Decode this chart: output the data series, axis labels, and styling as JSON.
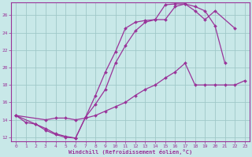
{
  "bg_color": "#c8e8e8",
  "line_color": "#993399",
  "grid_color": "#a0c8c8",
  "xlabel": "Windchill (Refroidissement éolien,°C)",
  "xlim": [
    -0.5,
    23.5
  ],
  "ylim": [
    11.5,
    27.5
  ],
  "yticks": [
    12,
    14,
    16,
    18,
    20,
    22,
    24,
    26
  ],
  "xticks": [
    0,
    1,
    2,
    3,
    4,
    5,
    6,
    7,
    8,
    9,
    10,
    11,
    12,
    13,
    14,
    15,
    16,
    17,
    18,
    19,
    20,
    21,
    22,
    23
  ],
  "curve_A_x": [
    0,
    1,
    2,
    3,
    4,
    5,
    6,
    7,
    8,
    9,
    10,
    11,
    12,
    13,
    14,
    15,
    16,
    17,
    18,
    19,
    20,
    21
  ],
  "curve_A_y": [
    14.5,
    13.7,
    13.5,
    13.0,
    12.4,
    12.1,
    11.9,
    14.3,
    16.8,
    19.5,
    21.8,
    24.5,
    25.2,
    25.4,
    25.5,
    27.2,
    27.3,
    27.3,
    27.0,
    26.5,
    24.8,
    20.5
  ],
  "curve_B_x": [
    0,
    3,
    4,
    5,
    6,
    7,
    8,
    9,
    10,
    11,
    12,
    13,
    14,
    15,
    16,
    17,
    18,
    19,
    20,
    21,
    22,
    23
  ],
  "curve_B_y": [
    14.5,
    14.0,
    14.2,
    14.2,
    14.0,
    14.2,
    14.5,
    15.0,
    15.5,
    16.0,
    16.8,
    17.5,
    18.0,
    18.8,
    19.5,
    20.5,
    18.0,
    18.0,
    18.0,
    18.0,
    18.0,
    18.5
  ],
  "curve_C_x": [
    0,
    2,
    3,
    4,
    5,
    6,
    7,
    8,
    9,
    10,
    11,
    12,
    13,
    14,
    15,
    16,
    17,
    18,
    19,
    20,
    22
  ],
  "curve_C_y": [
    14.5,
    13.5,
    12.8,
    12.3,
    12.0,
    11.9,
    14.3,
    15.8,
    17.5,
    20.5,
    22.5,
    24.2,
    25.2,
    25.5,
    25.5,
    27.0,
    27.3,
    26.5,
    25.5,
    26.5,
    24.5
  ]
}
